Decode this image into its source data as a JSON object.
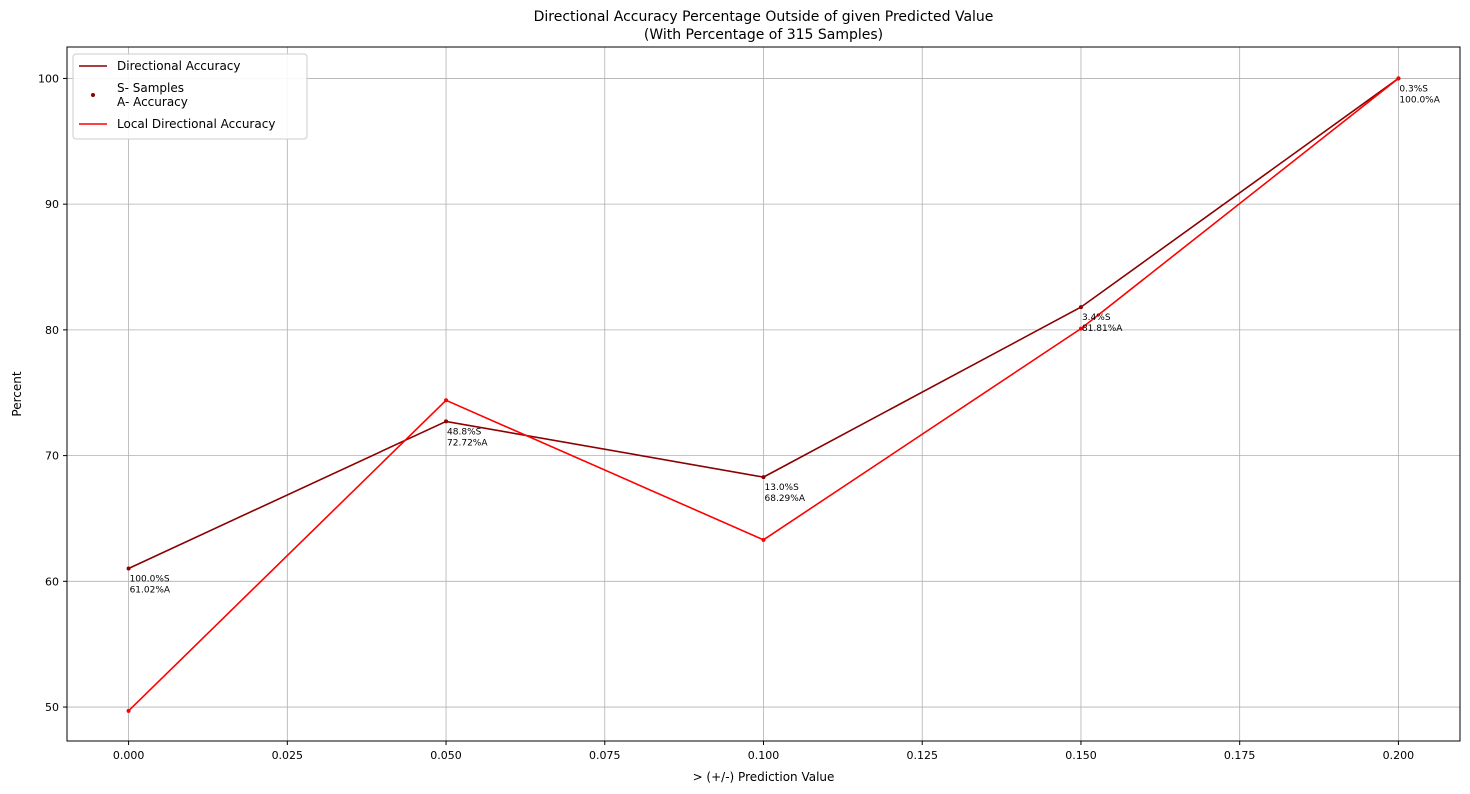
{
  "chart_data": {
    "type": "line",
    "title": "Directional Accuracy Percentage Outside of given Predicted Value",
    "subtitle": "(With Percentage of 315 Samples)",
    "xlabel": "> (+/-) Prediction Value",
    "ylabel": "Percent",
    "xlim": [
      -0.0097,
      0.2097
    ],
    "ylim": [
      47.3,
      102.5
    ],
    "grid": true,
    "legend_position": "top-left",
    "x_ticks": [
      "0.000",
      "0.025",
      "0.050",
      "0.075",
      "0.100",
      "0.125",
      "0.150",
      "0.175",
      "0.200"
    ],
    "y_ticks": [
      "50",
      "60",
      "70",
      "80",
      "90",
      "100"
    ],
    "x": [
      0.0,
      0.05,
      0.1,
      0.15,
      0.2
    ],
    "series": [
      {
        "name": "Directional Accuracy",
        "color": "#8b0000",
        "values": [
          61.02,
          72.72,
          68.29,
          81.81,
          100.0
        ]
      },
      {
        "name": "Local Directional Accuracy",
        "color": "#ff0000",
        "values": [
          49.7,
          74.4,
          63.3,
          80.1,
          100.0
        ]
      }
    ],
    "legend": [
      {
        "label": "Directional Accuracy",
        "kind": "line",
        "color": "#8b0000"
      },
      {
        "label": "S- Samples\nA- Accuracy",
        "kind": "dot",
        "color": "#8b0000"
      },
      {
        "label": "Local Directional Accuracy",
        "kind": "line",
        "color": "#ff0000"
      }
    ],
    "annotations": [
      {
        "x": 0.0,
        "y": 61.02,
        "lines": [
          "100.0%S",
          "61.02%A"
        ]
      },
      {
        "x": 0.05,
        "y": 72.72,
        "lines": [
          "48.8%S",
          "72.72%A"
        ]
      },
      {
        "x": 0.1,
        "y": 68.29,
        "lines": [
          "13.0%S",
          "68.29%A"
        ]
      },
      {
        "x": 0.15,
        "y": 81.81,
        "lines": [
          "3.4%S",
          "81.81%A"
        ]
      },
      {
        "x": 0.2,
        "y": 100.0,
        "lines": [
          "0.3%S",
          "100.0%A"
        ]
      }
    ]
  }
}
